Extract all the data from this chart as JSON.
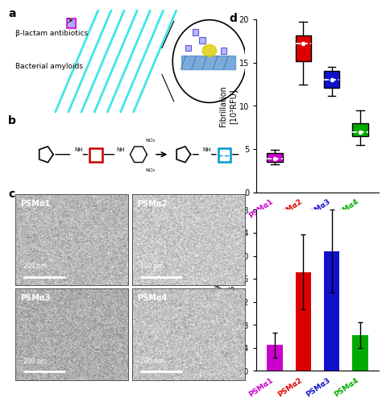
{
  "panel_d": {
    "labels": [
      "PSMα1",
      "PSMα2",
      "PSMα3",
      "PSMα4"
    ],
    "colors": [
      "#CC00CC",
      "#DD0000",
      "#1111CC",
      "#00AA00"
    ],
    "medians": [
      3.9,
      17.2,
      13.0,
      7.0
    ],
    "q1": [
      3.5,
      15.2,
      12.1,
      6.5
    ],
    "q3": [
      4.5,
      18.2,
      14.1,
      8.0
    ],
    "whislo": [
      3.2,
      12.5,
      11.2,
      5.5
    ],
    "whishi": [
      4.9,
      19.7,
      14.5,
      9.5
    ],
    "ylabel": "Fibrillation\n[10³RFU]",
    "ylim": [
      0,
      20
    ],
    "yticks": [
      0,
      5,
      10,
      15,
      20
    ]
  },
  "panel_e": {
    "labels": [
      "PSMα1",
      "PSMα2",
      "PSMα3",
      "PSMα4"
    ],
    "colors": [
      "#CC00CC",
      "#DD0000",
      "#1111CC",
      "#00AA00"
    ],
    "values": [
      0.45,
      1.72,
      2.08,
      0.62
    ],
    "errors": [
      0.22,
      0.65,
      0.72,
      0.22
    ],
    "ylabel": "$K_{cat}/K_M$\n[M⁻¹s⁻¹]",
    "ylim": [
      0.0,
      2.8
    ],
    "yticks": [
      0.0,
      0.4,
      0.8,
      1.2,
      1.6,
      2.0,
      2.4,
      2.8
    ]
  },
  "mic_labels": [
    "PSMα1",
    "PSMα2",
    "PSMα3",
    "PSMα4"
  ],
  "mic_gray_levels": [
    0.72,
    0.78,
    0.68,
    0.76
  ],
  "background_color": "#ffffff"
}
